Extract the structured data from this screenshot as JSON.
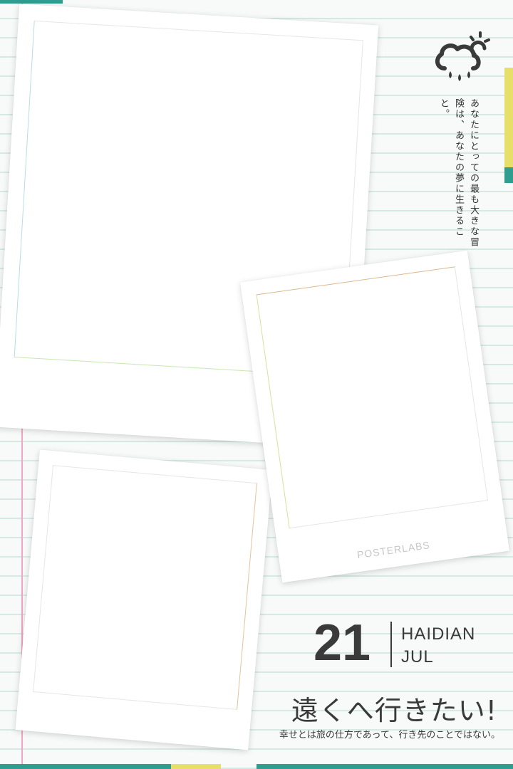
{
  "colors": {
    "paper": "#f7faf9",
    "rule_line": "#d6e9e5",
    "margin_line": "#f0a6c4",
    "tape_teal": "#2f9e8e",
    "tape_yellow": "#e6e06a",
    "text": "#3a3a3a",
    "brand_text": "#c7c7c7"
  },
  "icons": {
    "weather": "cloud-sun-rain-icon"
  },
  "quote_vertical": "あなたにとっての最も大きな冒険は、あなたの夢に生きること。",
  "polaroid_brand": "POSTERLABS",
  "date": {
    "day": "21",
    "place": "HAIDIAN",
    "month": "JUL"
  },
  "headline": "遠くへ行きたい!",
  "subline": "幸せとは旅の仕方であって、行き先のことではない。"
}
